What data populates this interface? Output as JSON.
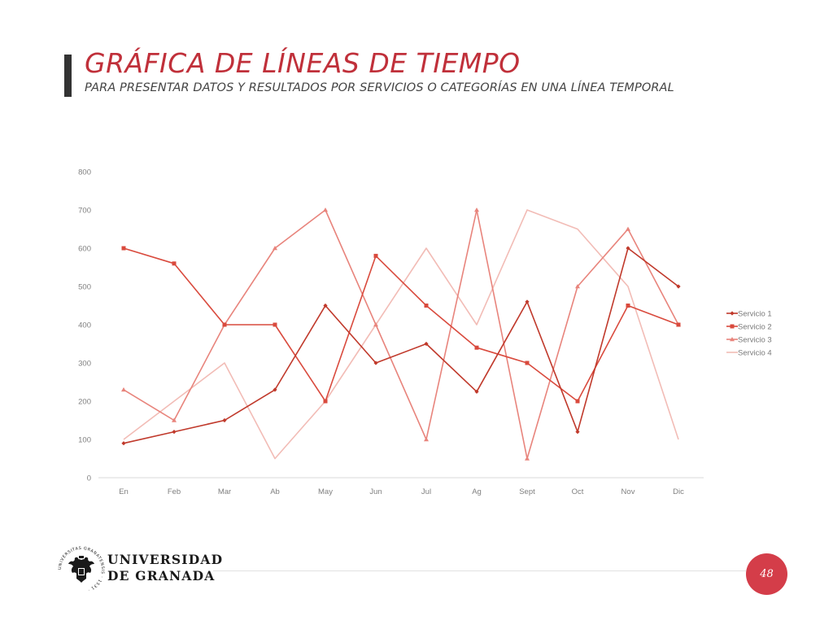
{
  "slide": {
    "title": "GRÁFICA DE LÍNEAS DE TIEMPO",
    "subtitle": "PARA PRESENTAR DATOS Y RESULTADOS POR SERVICIOS O CATEGORÍAS EN UNA LÍNEA TEMPORAL",
    "title_color": "#c0303a",
    "page_number": "48"
  },
  "footer": {
    "university_line1": "UNIVERSIDAD",
    "university_line2": "DE GRANADA",
    "logo_icon": "university-crest-icon",
    "logo_ring_text": "UNIVERSITAS GRANATENSIS · 1531 ·",
    "badge_color": "#d43d49"
  },
  "chart_data": {
    "type": "line",
    "title": "",
    "xlabel": "",
    "ylabel": "",
    "categories": [
      "En",
      "Feb",
      "Mar",
      "Ab",
      "May",
      "Jun",
      "Jul",
      "Ag",
      "Sept",
      "Oct",
      "Nov",
      "Dic"
    ],
    "ylim": [
      0,
      800
    ],
    "yticks": [
      0,
      100,
      200,
      300,
      400,
      500,
      600,
      700,
      800
    ],
    "grid": "horizontal",
    "legend_position": "right",
    "series": [
      {
        "name": "Servicio 1",
        "color": "#c0392b",
        "marker": "diamond",
        "values": [
          90,
          120,
          150,
          230,
          450,
          300,
          350,
          225,
          460,
          120,
          600,
          500
        ]
      },
      {
        "name": "Servicio 2",
        "color": "#d94a3d",
        "marker": "square",
        "values": [
          600,
          560,
          400,
          400,
          200,
          580,
          450,
          340,
          300,
          200,
          450,
          400
        ]
      },
      {
        "name": "Servicio 3",
        "color": "#e8847c",
        "marker": "triangle",
        "values": [
          230,
          150,
          400,
          600,
          700,
          400,
          100,
          700,
          50,
          500,
          650,
          400
        ]
      },
      {
        "name": "Servicio 4",
        "color": "#f2bcb6",
        "marker": "none",
        "values": [
          100,
          200,
          300,
          50,
          200,
          400,
          600,
          400,
          700,
          650,
          500,
          100
        ]
      }
    ]
  }
}
